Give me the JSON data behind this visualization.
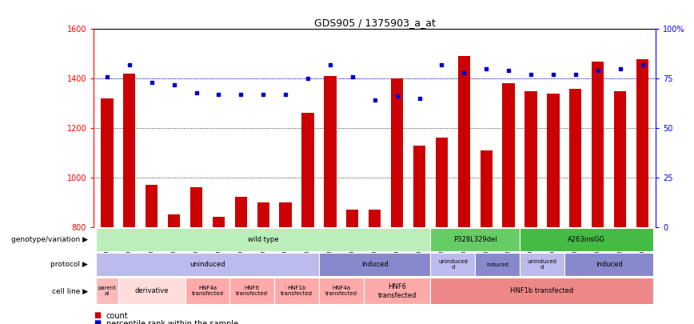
{
  "title": "GDS905 / 1375903_a_at",
  "samples": [
    "GSM27203",
    "GSM27204",
    "GSM27205",
    "GSM27206",
    "GSM27207",
    "GSM27150",
    "GSM27152",
    "GSM27156",
    "GSM27159",
    "GSM27063",
    "GSM27148",
    "GSM27151",
    "GSM27153",
    "GSM27157",
    "GSM27160",
    "GSM27147",
    "GSM27149",
    "GSM27161",
    "GSM27165",
    "GSM27163",
    "GSM27167",
    "GSM27169",
    "GSM27171",
    "GSM27170",
    "GSM27172"
  ],
  "red_bars": [
    1320,
    1420,
    970,
    850,
    960,
    840,
    920,
    900,
    900,
    1260,
    1410,
    870,
    870,
    1400,
    1130,
    1160,
    1490,
    1110,
    1380,
    1350,
    1340,
    1360,
    1470,
    1350,
    1480
  ],
  "blue_dots": [
    76,
    82,
    73,
    72,
    68,
    67,
    67,
    67,
    67,
    75,
    82,
    76,
    64,
    66,
    65,
    82,
    78,
    80,
    79,
    77,
    77,
    77,
    79,
    80,
    82
  ],
  "bar_color": "#cc0000",
  "dot_color": "#0000cc",
  "geno_boxes": [
    {
      "start": 0,
      "end": 15,
      "label": "wild type",
      "color": "#bbeebb"
    },
    {
      "start": 15,
      "end": 19,
      "label": "P328L329del",
      "color": "#66cc66"
    },
    {
      "start": 19,
      "end": 25,
      "label": "A263insGG",
      "color": "#44bb44"
    }
  ],
  "proto_boxes": [
    {
      "start": 0,
      "end": 10,
      "label": "uninduced",
      "color": "#bbbbee"
    },
    {
      "start": 10,
      "end": 15,
      "label": "induced",
      "color": "#8888cc"
    },
    {
      "start": 15,
      "end": 17,
      "label": "uninduced\nd",
      "color": "#bbbbee"
    },
    {
      "start": 17,
      "end": 19,
      "label": "induced",
      "color": "#8888cc"
    },
    {
      "start": 19,
      "end": 21,
      "label": "uninduced\nd",
      "color": "#bbbbee"
    },
    {
      "start": 21,
      "end": 25,
      "label": "induced",
      "color": "#8888cc"
    }
  ],
  "cell_boxes": [
    {
      "start": 0,
      "end": 1,
      "label": "parent\nal",
      "color": "#ffbbbb"
    },
    {
      "start": 1,
      "end": 4,
      "label": "derivative",
      "color": "#ffdddd"
    },
    {
      "start": 4,
      "end": 6,
      "label": "HNF4a\ntransfected",
      "color": "#ffaaaa"
    },
    {
      "start": 6,
      "end": 8,
      "label": "HNF6\ntransfected",
      "color": "#ffaaaa"
    },
    {
      "start": 8,
      "end": 10,
      "label": "HNF1b\ntransfected",
      "color": "#ffaaaa"
    },
    {
      "start": 10,
      "end": 12,
      "label": "HNF4a\ntransfected",
      "color": "#ffaaaa"
    },
    {
      "start": 12,
      "end": 15,
      "label": "HNF6\ntransfected",
      "color": "#ffaaaa"
    },
    {
      "start": 15,
      "end": 25,
      "label": "HNF1b transfected",
      "color": "#ee8888"
    }
  ]
}
